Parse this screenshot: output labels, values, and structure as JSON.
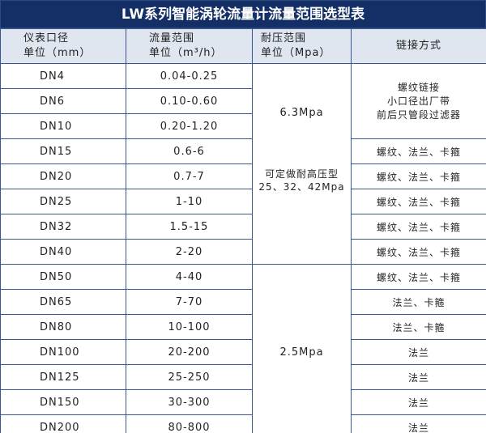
{
  "title": "LW系列智能涡轮流量计流量范围选型表",
  "headers": {
    "size": [
      "仪表口径",
      "单位（mm）"
    ],
    "flow": [
      "流量范围",
      "单位（m³/h）"
    ],
    "pressure": [
      "耐压范围",
      "单位（Mpa）"
    ],
    "connection": "链接方式"
  },
  "rows": [
    {
      "size": "DN4",
      "flow": "0.04-0.25"
    },
    {
      "size": "DN6",
      "flow": "0.10-0.60"
    },
    {
      "size": "DN10",
      "flow": "0.20-1.20"
    },
    {
      "size": "DN15",
      "flow": "0.6-6",
      "connection": "螺纹、法兰、卡箍"
    },
    {
      "size": "DN20",
      "flow": "0.7-7",
      "connection": "螺纹、法兰、卡箍"
    },
    {
      "size": "DN25",
      "flow": "1-10",
      "connection": "螺纹、法兰、卡箍"
    },
    {
      "size": "DN32",
      "flow": "1.5-15",
      "connection": "螺纹、法兰、卡箍"
    },
    {
      "size": "DN40",
      "flow": "2-20",
      "connection": "螺纹、法兰、卡箍"
    },
    {
      "size": "DN50",
      "flow": "4-40",
      "connection": "螺纹、法兰、卡箍"
    },
    {
      "size": "DN65",
      "flow": "7-70",
      "connection": "法兰、卡箍"
    },
    {
      "size": "DN80",
      "flow": "10-100",
      "connection": "法兰、卡箍"
    },
    {
      "size": "DN100",
      "flow": "20-200",
      "connection": "法兰"
    },
    {
      "size": "DN125",
      "flow": "25-250",
      "connection": "法兰"
    },
    {
      "size": "DN150",
      "flow": "30-300",
      "connection": "法兰"
    },
    {
      "size": "DN200",
      "flow": "80-800",
      "connection": "法兰"
    }
  ],
  "pressure_groups": {
    "high": {
      "value": "6.3Mpa",
      "note": [
        "可定做耐高压型",
        "25、32、42Mpa"
      ]
    },
    "low": {
      "value": "2.5Mpa"
    }
  },
  "small_bore_connection": [
    "螺纹链接",
    "小口径出厂带",
    "前后只管段过滤器"
  ]
}
